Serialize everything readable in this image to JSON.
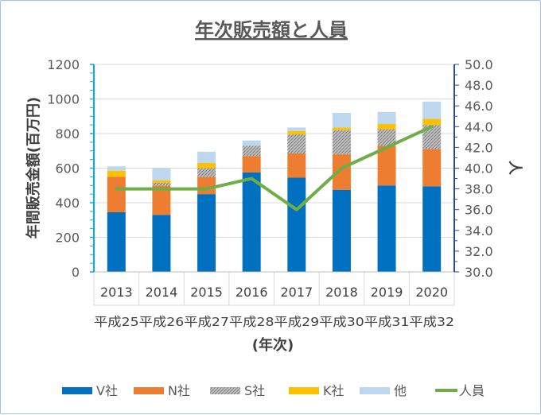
{
  "chart_data": {
    "type": "bar",
    "stacked": true,
    "title": "年次販売額と人員",
    "ylabel": "年間販売金額(百万円)",
    "y2label": "人",
    "xlabel": "(年次)",
    "categories": [
      "2013",
      "2014",
      "2015",
      "2016",
      "2017",
      "2018",
      "2019",
      "2020"
    ],
    "categories2": [
      "平成25",
      "平成26",
      "平成27",
      "平成28",
      "平成29",
      "平成30",
      "平成31",
      "平成32"
    ],
    "ylim": [
      0,
      1200
    ],
    "yticks": [
      "0",
      "200",
      "400",
      "600",
      "800",
      "1000",
      "1200"
    ],
    "y2lim": [
      30,
      50
    ],
    "y2ticks": [
      "30.0",
      "32.0",
      "34.0",
      "36.0",
      "38.0",
      "40.0",
      "42.0",
      "44.0",
      "46.0",
      "48.0",
      "50.0"
    ],
    "series": [
      {
        "name": "V社",
        "color": "#0070c0",
        "values": [
          345,
          330,
          450,
          575,
          545,
          475,
          500,
          495
        ]
      },
      {
        "name": "N社",
        "color": "#ed7d31",
        "values": [
          205,
          170,
          100,
          95,
          140,
          205,
          230,
          215
        ]
      },
      {
        "name": "S社",
        "color": "#a5a5a5",
        "pattern": "hatched",
        "values": [
          0,
          15,
          50,
          60,
          110,
          140,
          95,
          140
        ]
      },
      {
        "name": "K社",
        "color": "#ffc000",
        "values": [
          35,
          15,
          30,
          0,
          20,
          15,
          30,
          35
        ]
      },
      {
        "name": "他",
        "color": "#bdd7ee",
        "values": [
          25,
          70,
          65,
          30,
          20,
          85,
          70,
          100
        ]
      }
    ],
    "line": {
      "name": "人員",
      "color": "#70ad47",
      "axis": "right",
      "values": [
        38,
        38,
        38,
        39,
        36,
        40,
        42,
        44
      ]
    },
    "grid": true,
    "legend": "bottom"
  }
}
